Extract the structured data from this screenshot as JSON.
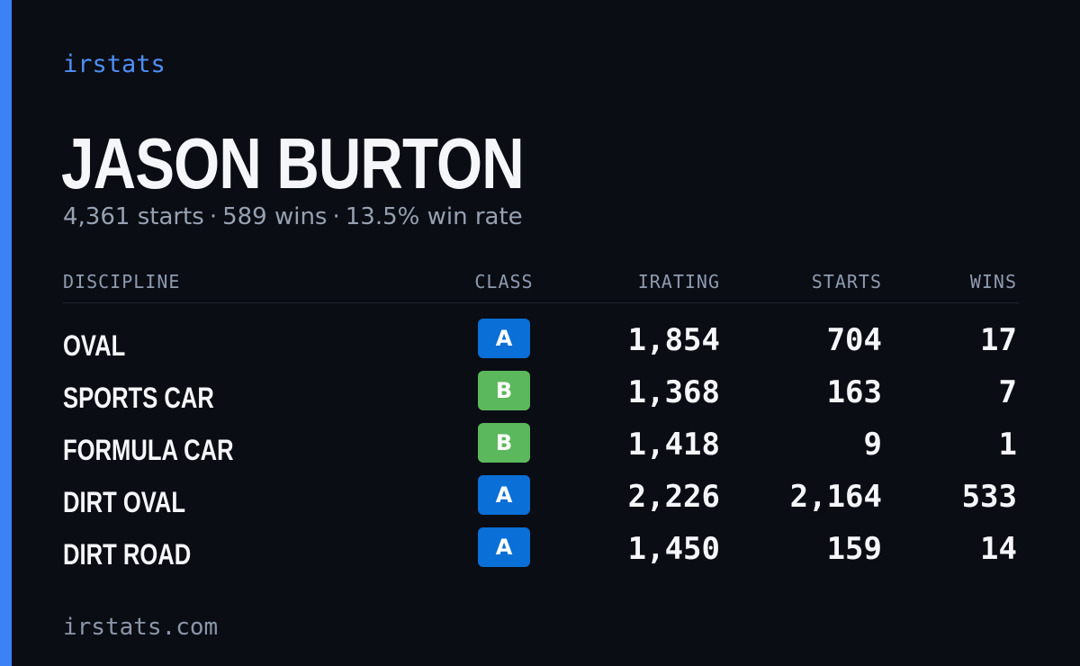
{
  "brand": "irstats",
  "player": {
    "name": "JASON BURTON",
    "starts": "4,361 starts",
    "wins": "589 wins",
    "win_rate": "13.5% win rate",
    "separator": "·"
  },
  "table": {
    "headers": {
      "discipline": "DISCIPLINE",
      "class": "CLASS",
      "irating": "IRATING",
      "starts": "STARTS",
      "wins": "WINS"
    },
    "rows": [
      {
        "discipline": "OVAL",
        "class": "A",
        "irating": "1,854",
        "starts": "704",
        "wins": "17"
      },
      {
        "discipline": "SPORTS CAR",
        "class": "B",
        "irating": "1,368",
        "starts": "163",
        "wins": "7"
      },
      {
        "discipline": "FORMULA CAR",
        "class": "B",
        "irating": "1,418",
        "starts": "9",
        "wins": "1"
      },
      {
        "discipline": "DIRT OVAL",
        "class": "A",
        "irating": "2,226",
        "starts": "2,164",
        "wins": "533"
      },
      {
        "discipline": "DIRT ROAD",
        "class": "A",
        "irating": "1,450",
        "starts": "159",
        "wins": "14"
      }
    ]
  },
  "class_colors": {
    "A": "#0a6fd6",
    "B": "#5cb85c"
  },
  "colors": {
    "accent": "#3b82f6",
    "background": "#0a0d14"
  },
  "footer": "irstats.com"
}
